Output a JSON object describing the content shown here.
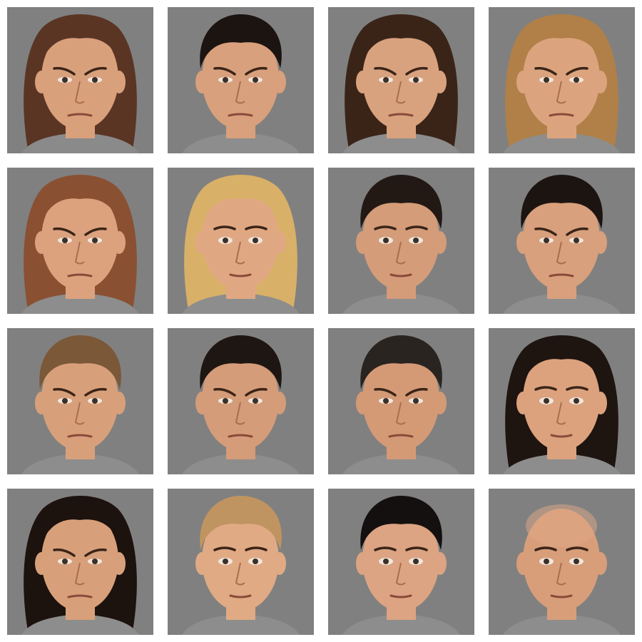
{
  "background": "#ffffff",
  "tile_background": "#808080",
  "faces": [
    {
      "hair": "long-brown",
      "expression": "angry",
      "hair_color": "#5a3524",
      "skin": "#d9a07c",
      "shirt": "#8a8a8a"
    },
    {
      "hair": "short-dark",
      "expression": "angry",
      "hair_color": "#1c1410",
      "skin": "#d8a07c",
      "shirt": "#8d8d8d"
    },
    {
      "hair": "curly-brown",
      "expression": "angry",
      "hair_color": "#3a2418",
      "skin": "#d9a27e",
      "shirt": "#8d8d8d"
    },
    {
      "hair": "long-blonde",
      "expression": "angry",
      "hair_color": "#b08048",
      "skin": "#dca47e",
      "shirt": "#8d8d8d"
    },
    {
      "hair": "long-auburn",
      "expression": "angry",
      "hair_color": "#8a5032",
      "skin": "#dca27e",
      "shirt": "#8d8d8d"
    },
    {
      "hair": "long-blonde",
      "expression": "neutral",
      "hair_color": "#d8b068",
      "skin": "#e0a882",
      "shirt": "#8d8d8d"
    },
    {
      "hair": "short-dark",
      "expression": "neutral",
      "hair_color": "#221814",
      "skin": "#d49c78",
      "shirt": "#8d8d8d"
    },
    {
      "hair": "short-dark",
      "expression": "angry",
      "hair_color": "#1c1410",
      "skin": "#d8a07c",
      "shirt": "#8d8d8d"
    },
    {
      "hair": "short-light-brown",
      "expression": "angry",
      "hair_color": "#7a5838",
      "skin": "#d8a07a",
      "shirt": "#8d8d8d"
    },
    {
      "hair": "short-dark",
      "expression": "angry",
      "hair_color": "#1e1612",
      "skin": "#d49c78",
      "shirt": "#8d8d8d"
    },
    {
      "hair": "short-dark-grey",
      "expression": "angry",
      "hair_color": "#2a2420",
      "skin": "#d49a76",
      "shirt": "#8d8d8d"
    },
    {
      "hair": "long-dark",
      "expression": "neutral",
      "hair_color": "#1e1410",
      "skin": "#dca27e",
      "shirt": "#8d8d8d"
    },
    {
      "hair": "long-dark",
      "expression": "angry",
      "hair_color": "#1c120e",
      "skin": "#d8a07a",
      "shirt": "#8d8d8d"
    },
    {
      "hair": "short-blonde",
      "expression": "neutral",
      "hair_color": "#c09460",
      "skin": "#e0aa84",
      "shirt": "#8d8d8d"
    },
    {
      "hair": "short-dark",
      "expression": "neutral",
      "hair_color": "#141010",
      "skin": "#dca482",
      "shirt": "#8d8d8d"
    },
    {
      "hair": "bald",
      "expression": "neutral",
      "hair_color": "#c89070",
      "skin": "#d89e7a",
      "shirt": "#8d8d8d"
    }
  ]
}
